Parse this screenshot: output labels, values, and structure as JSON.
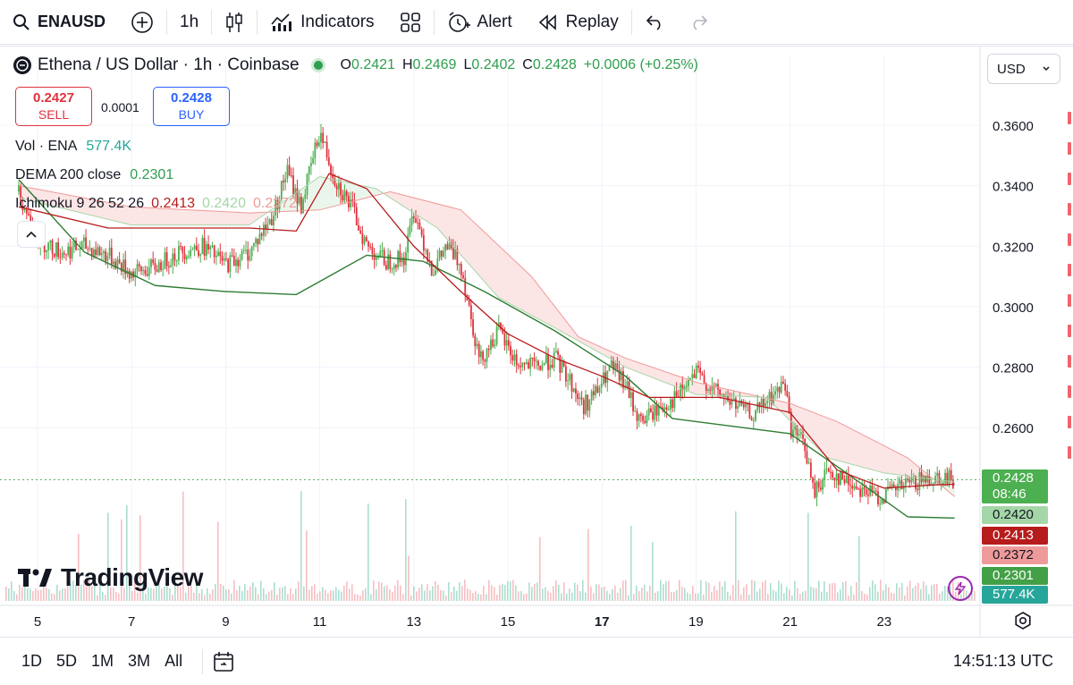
{
  "toolbar": {
    "symbol": "ENAUSD",
    "interval": "1h",
    "indicators_label": "Indicators",
    "alert_label": "Alert",
    "replay_label": "Replay"
  },
  "legend": {
    "title": "Ethena / US Dollar · 1h · Coinbase",
    "ohlc": {
      "o_key": "O",
      "o": "0.2421",
      "h_key": "H",
      "h": "0.2469",
      "l_key": "L",
      "l": "0.2402",
      "c_key": "C",
      "c": "0.2428",
      "change": "+0.0006 (+0.25%)"
    },
    "sell": {
      "price": "0.2427",
      "label": "SELL"
    },
    "buy": {
      "price": "0.2428",
      "label": "BUY"
    },
    "spread": "0.0001",
    "vol": {
      "name": "Vol · ENA",
      "value": "577.4K"
    },
    "dema": {
      "name": "DEMA 200 close",
      "value": "0.2301"
    },
    "ichimoku": {
      "name": "Ichimoku 9 26 52 26",
      "v1": "0.2413",
      "v2": "0.2420",
      "v3": "0.2372"
    }
  },
  "currency": "USD",
  "price_axis_labels": [
    "0.3600",
    "0.3400",
    "0.3200",
    "0.3000",
    "0.2800",
    "0.2600"
  ],
  "price_tags": [
    {
      "text": "0.2428",
      "color": "#4caf50",
      "value": 0.2428
    },
    {
      "text": "08:46",
      "color": "#4caf50"
    },
    {
      "text": "0.2420",
      "color": "#a5d6a7",
      "value": 0.242
    },
    {
      "text": "0.2413",
      "color": "#b71c1c",
      "value": 0.2413
    },
    {
      "text": "0.2372",
      "color": "#ef9a9a",
      "value": 0.2372
    },
    {
      "text": "0.2301",
      "color": "#43a047",
      "value": 0.2301
    },
    {
      "text": "577.4K",
      "color": "#26a69a"
    }
  ],
  "time_axis_labels": [
    "5",
    "7",
    "9",
    "11",
    "13",
    "15",
    "17",
    "19",
    "21",
    "23"
  ],
  "brand": "TradingView",
  "bottom": {
    "ranges": [
      "1D",
      "5D",
      "1M",
      "3M",
      "All"
    ],
    "clock": "14:51:13 UTC"
  },
  "colors": {
    "up": "#4caf50",
    "down": "#e0323e",
    "dema": "#2e7d32",
    "tenkan": "#b71c1c",
    "kijun": "#ef9a9a",
    "span_a": "#a5d6a7",
    "cloud_bear": "#fbe0e0",
    "cloud_bull": "#e6f4e7"
  },
  "chart_data": {
    "type": "candlestick",
    "title": "Ethena / US Dollar · 1h · Coinbase",
    "x_axis": [
      "5",
      "7",
      "9",
      "11",
      "13",
      "15",
      "17",
      "19",
      "21",
      "23"
    ],
    "y_range": [
      0.235,
      0.368
    ],
    "close_path": [
      [
        4.6,
        0.338
      ],
      [
        5.0,
        0.322
      ],
      [
        5.5,
        0.318
      ],
      [
        6.0,
        0.32
      ],
      [
        6.5,
        0.317
      ],
      [
        7.0,
        0.311
      ],
      [
        7.5,
        0.313
      ],
      [
        8.0,
        0.318
      ],
      [
        8.5,
        0.32
      ],
      [
        9.0,
        0.314
      ],
      [
        9.5,
        0.318
      ],
      [
        10.0,
        0.33
      ],
      [
        10.3,
        0.345
      ],
      [
        10.6,
        0.333
      ],
      [
        11.0,
        0.358
      ],
      [
        11.3,
        0.343
      ],
      [
        11.7,
        0.332
      ],
      [
        12.0,
        0.32
      ],
      [
        12.4,
        0.315
      ],
      [
        12.8,
        0.316
      ],
      [
        13.0,
        0.332
      ],
      [
        13.4,
        0.312
      ],
      [
        13.7,
        0.32
      ],
      [
        14.0,
        0.314
      ],
      [
        14.2,
        0.298
      ],
      [
        14.4,
        0.282
      ],
      [
        14.8,
        0.292
      ],
      [
        15.2,
        0.281
      ],
      [
        15.6,
        0.28
      ],
      [
        16.0,
        0.283
      ],
      [
        16.3,
        0.276
      ],
      [
        16.6,
        0.267
      ],
      [
        16.9,
        0.272
      ],
      [
        17.2,
        0.28
      ],
      [
        17.5,
        0.274
      ],
      [
        17.8,
        0.262
      ],
      [
        18.2,
        0.266
      ],
      [
        18.6,
        0.27
      ],
      [
        19.0,
        0.278
      ],
      [
        19.4,
        0.272
      ],
      [
        19.8,
        0.268
      ],
      [
        20.2,
        0.264
      ],
      [
        20.6,
        0.27
      ],
      [
        20.9,
        0.275
      ],
      [
        21.0,
        0.26
      ],
      [
        21.3,
        0.255
      ],
      [
        21.5,
        0.238
      ],
      [
        21.8,
        0.246
      ],
      [
        22.1,
        0.243
      ],
      [
        22.5,
        0.24
      ],
      [
        22.9,
        0.237
      ],
      [
        23.3,
        0.24
      ],
      [
        23.7,
        0.242
      ],
      [
        24.1,
        0.244
      ],
      [
        24.5,
        0.2428
      ]
    ],
    "series": [
      {
        "name": "DEMA 200 close",
        "points": [
          [
            4.6,
            0.342
          ],
          [
            6.0,
            0.318
          ],
          [
            7.5,
            0.307
          ],
          [
            9.0,
            0.305
          ],
          [
            10.5,
            0.304
          ],
          [
            12.0,
            0.317
          ],
          [
            13.2,
            0.315
          ],
          [
            14.5,
            0.305
          ],
          [
            16.0,
            0.292
          ],
          [
            17.5,
            0.277
          ],
          [
            18.5,
            0.263
          ],
          [
            19.5,
            0.261
          ],
          [
            21.0,
            0.258
          ],
          [
            22.2,
            0.245
          ],
          [
            23.5,
            0.2305
          ],
          [
            24.5,
            0.2301
          ]
        ]
      },
      {
        "name": "Ichimoku 9 26 52 26",
        "points": [
          [
            4.6,
            0.333
          ],
          [
            6.5,
            0.326
          ],
          [
            8.0,
            0.326
          ],
          [
            9.5,
            0.326
          ],
          [
            10.5,
            0.325
          ],
          [
            11.2,
            0.344
          ],
          [
            12.0,
            0.339
          ],
          [
            13.0,
            0.32
          ],
          [
            14.0,
            0.305
          ],
          [
            15.0,
            0.291
          ],
          [
            16.0,
            0.283
          ],
          [
            17.0,
            0.277
          ],
          [
            18.0,
            0.27
          ],
          [
            19.5,
            0.27
          ],
          [
            21.0,
            0.265
          ],
          [
            22.0,
            0.246
          ],
          [
            23.0,
            0.24
          ],
          [
            24.0,
            0.241
          ],
          [
            24.5,
            0.2413
          ]
        ]
      },
      {
        "name": "Ichimoku 9 26 52 26",
        "points": [
          [
            4.6,
            0.336
          ],
          [
            7.0,
            0.327
          ],
          [
            9.5,
            0.327
          ],
          [
            11.0,
            0.343
          ],
          [
            12.2,
            0.339
          ],
          [
            13.5,
            0.326
          ],
          [
            14.8,
            0.303
          ],
          [
            16.0,
            0.293
          ],
          [
            17.5,
            0.28
          ],
          [
            19.0,
            0.271
          ],
          [
            20.5,
            0.27
          ],
          [
            21.8,
            0.25
          ],
          [
            23.0,
            0.245
          ],
          [
            24.5,
            0.242
          ]
        ]
      },
      {
        "name": "Ichimoku 9 26 52 26",
        "points": [
          [
            4.6,
            0.34
          ],
          [
            7.0,
            0.333
          ],
          [
            9.5,
            0.331
          ],
          [
            11.0,
            0.332
          ],
          [
            12.5,
            0.338
          ],
          [
            14.0,
            0.332
          ],
          [
            15.5,
            0.31
          ],
          [
            16.5,
            0.29
          ],
          [
            17.5,
            0.283
          ],
          [
            19.0,
            0.275
          ],
          [
            21.0,
            0.268
          ],
          [
            22.0,
            0.262
          ],
          [
            23.5,
            0.25
          ],
          [
            24.5,
            0.2372
          ]
        ]
      }
    ],
    "last_price": 0.2428,
    "volume_last": "577.4K"
  }
}
